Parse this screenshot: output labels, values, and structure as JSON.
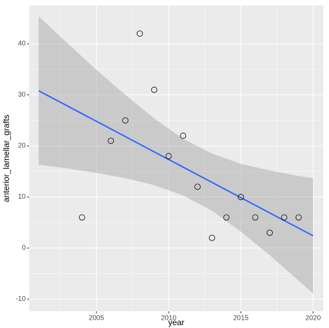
{
  "chart_data": {
    "type": "scatter",
    "x_label": "year",
    "y_label": "anterior_lamellar_grafts",
    "x": [
      2004,
      2006,
      2007,
      2008,
      2009,
      2010,
      2011,
      2012,
      2013,
      2014,
      2015,
      2016,
      2017,
      2018,
      2019
    ],
    "values": [
      6,
      21,
      25,
      42,
      31,
      18,
      22,
      12,
      2,
      6,
      10,
      6,
      3,
      6,
      6
    ],
    "color": "#000000",
    "fit": {
      "x": [
        2001,
        2020
      ],
      "values": [
        30.8,
        2.4
      ],
      "color": "#3366ff"
    },
    "band": {
      "x": [
        2001,
        2003,
        2005,
        2007,
        2009,
        2011,
        2013,
        2015,
        2017,
        2019,
        2020
      ],
      "upper": [
        45.4,
        40.1,
        34.9,
        30.0,
        25.4,
        21.4,
        18.5,
        16.5,
        15.2,
        14.1,
        13.7
      ],
      "lower": [
        16.3,
        15.6,
        14.7,
        13.7,
        12.3,
        10.3,
        7.3,
        3.2,
        -1.4,
        -6.4,
        -8.9
      ],
      "color": "#999999"
    },
    "xlim": [
      2000.34,
      2020.72
    ],
    "ylim": [
      -12.4,
      47.5
    ],
    "xticks": [
      2005,
      2010,
      2015,
      2020
    ],
    "yticks": [
      -10,
      0,
      10,
      20,
      30,
      40
    ],
    "grid": true
  }
}
